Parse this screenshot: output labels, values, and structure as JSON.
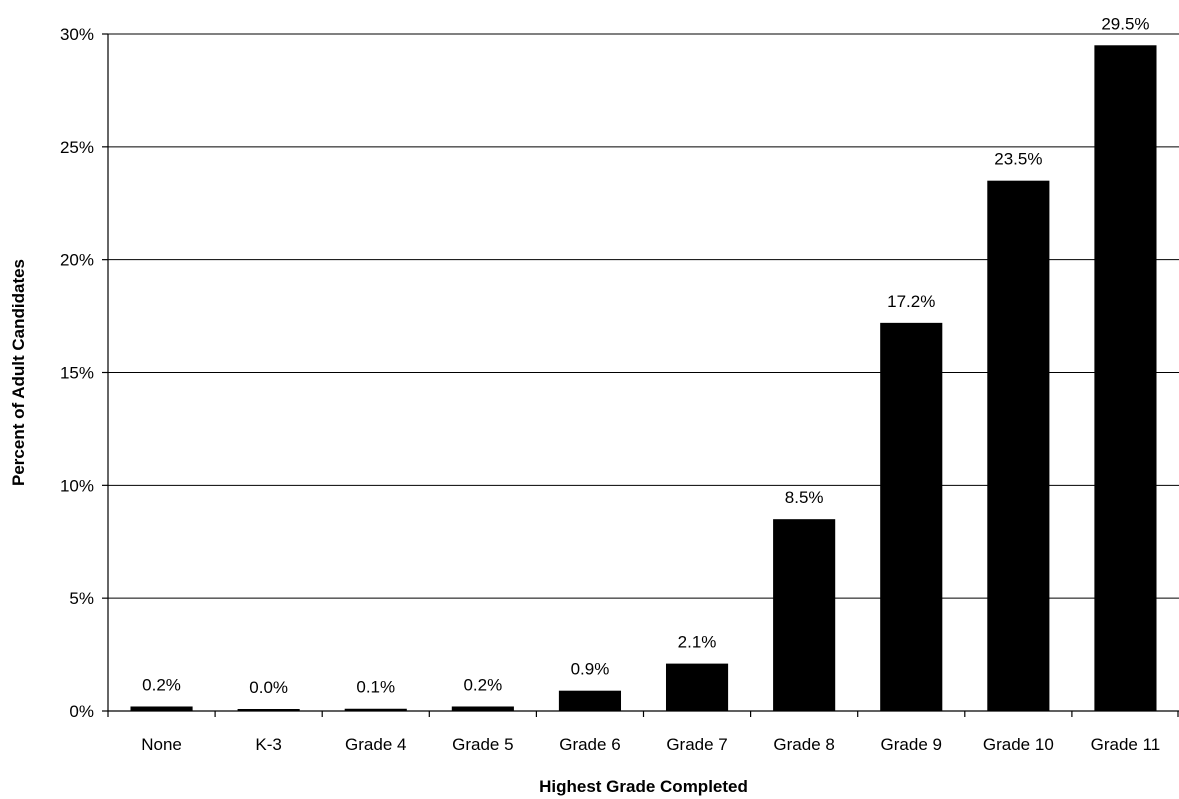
{
  "chart_data": {
    "type": "bar",
    "title": "",
    "xlabel": "Highest Grade Completed",
    "ylabel": "Percent of Adult Candidates",
    "categories": [
      "None",
      "K-3",
      "Grade 4",
      "Grade 5",
      "Grade 6",
      "Grade 7",
      "Grade 8",
      "Grade 9",
      "Grade 10",
      "Grade 11"
    ],
    "values": [
      0.2,
      0.0,
      0.1,
      0.2,
      0.9,
      2.1,
      8.5,
      17.2,
      23.5,
      29.5
    ],
    "data_labels": [
      "0.2%",
      "0.0%",
      "0.1%",
      "0.2%",
      "0.9%",
      "2.1%",
      "8.5%",
      "17.2%",
      "23.5%",
      "29.5%"
    ],
    "yticks": [
      0,
      5,
      10,
      15,
      20,
      25,
      30
    ],
    "ytick_labels": [
      "0%",
      "5%",
      "10%",
      "15%",
      "20%",
      "25%",
      "30%"
    ],
    "ylim": [
      0,
      30
    ],
    "grid": true,
    "legend": "none",
    "bar_color": "#000000"
  }
}
